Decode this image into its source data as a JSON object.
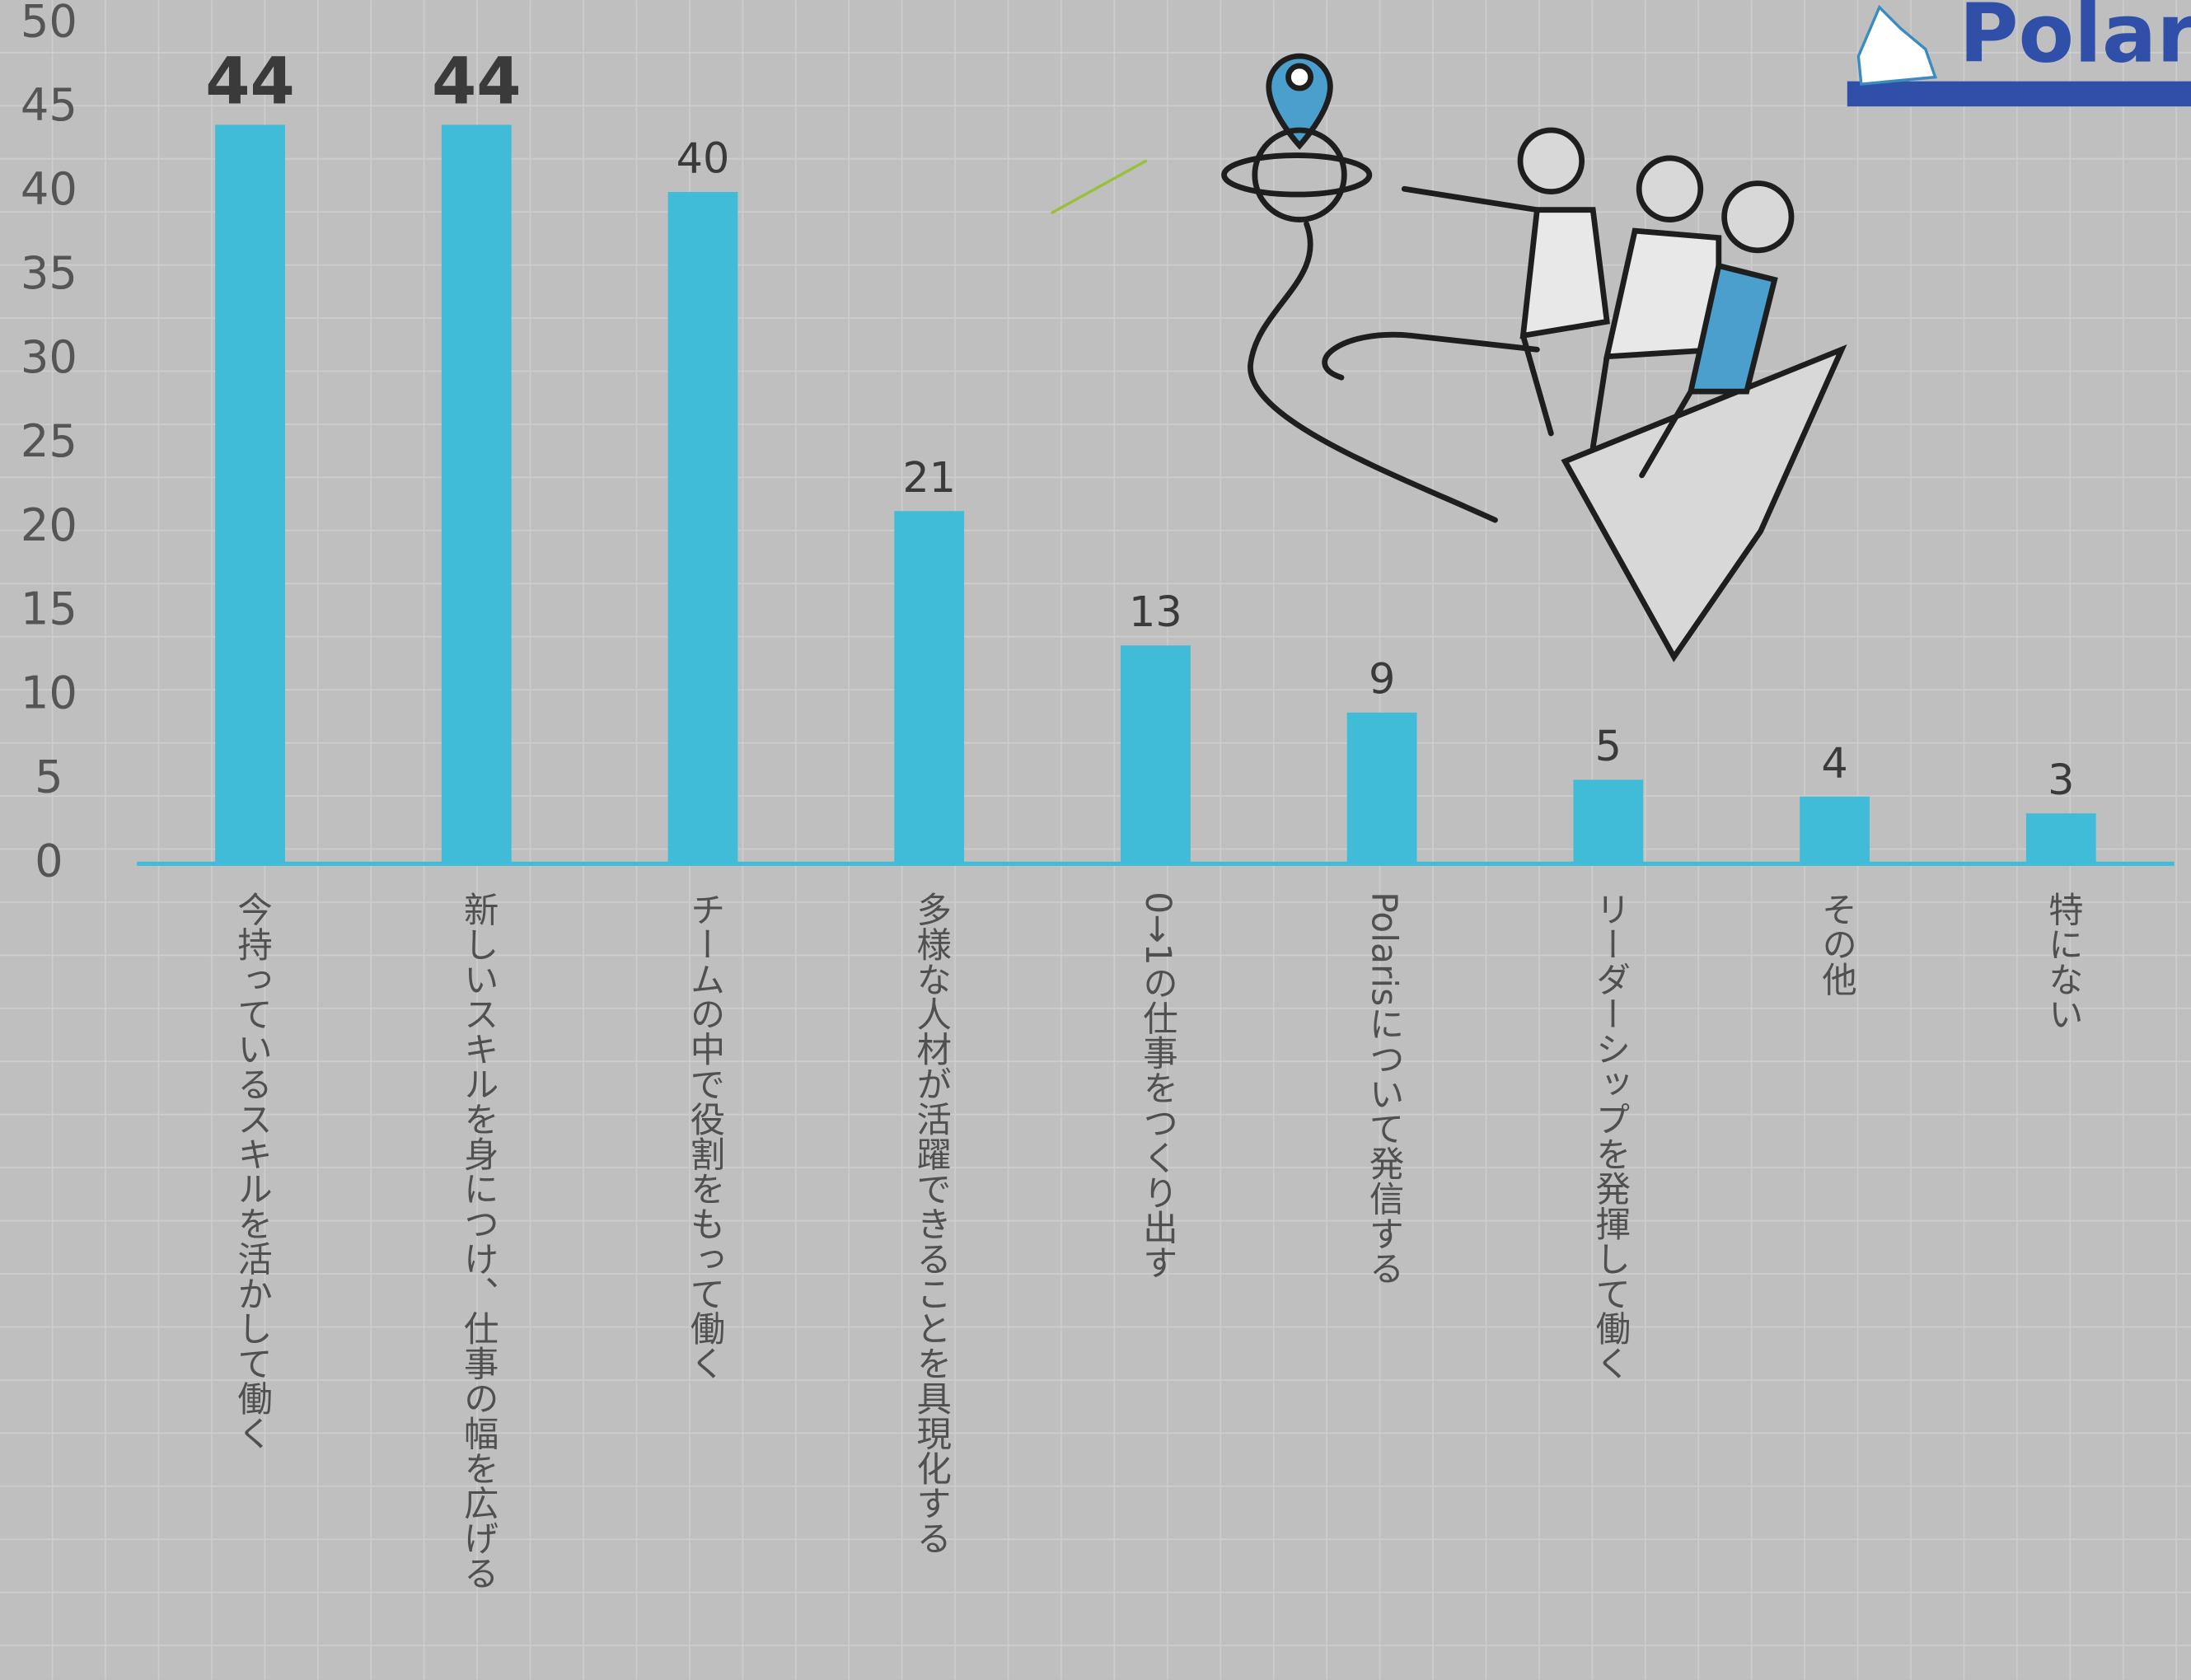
{
  "chart_data": {
    "type": "bar",
    "logo": "Polar",
    "categories": [
      "今持っているスキルを活かして働く",
      "新しいスキルを身につけ、仕事の幅を広げる",
      "チームの中で役割をもって働く",
      "多様な人材が活躍できることを具現化する",
      "0→1の仕事をつくり出す",
      "Polarisについて発信する",
      "リーダーシップを発揮して働く",
      "その他",
      "特にない"
    ],
    "values": [
      44,
      44,
      40,
      21,
      13,
      9,
      5,
      4,
      3
    ],
    "color": "#40bcd8",
    "ylim": [
      0,
      50
    ],
    "yticks": [
      0,
      5,
      10,
      15,
      20,
      25,
      30,
      35,
      40,
      45,
      50
    ],
    "grid": false
  }
}
